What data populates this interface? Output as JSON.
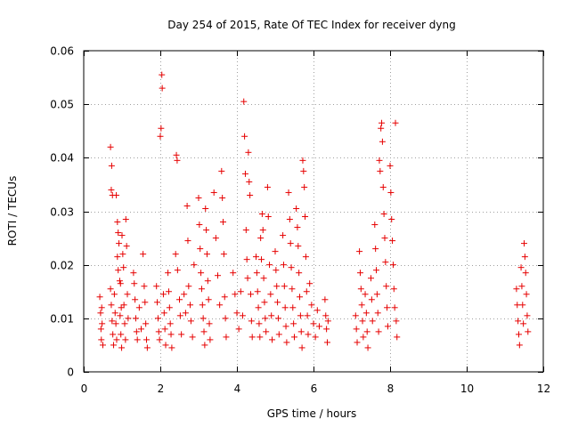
{
  "chart_data": {
    "type": "scatter",
    "title": "Day 254 of 2015, Rate Of TEC Index for receiver dyng",
    "xlabel": "GPS time / hours",
    "ylabel": "ROTI / TECUs",
    "xlim": [
      0,
      12
    ],
    "ylim": [
      0,
      0.06
    ],
    "x_ticks": [
      0,
      2,
      4,
      6,
      8,
      10,
      12
    ],
    "y_ticks": [
      0,
      0.01,
      0.02,
      0.03,
      0.04,
      0.05,
      0.06
    ],
    "x_tick_labels": [
      "0",
      "2",
      "4",
      "6",
      "8",
      "10",
      "12"
    ],
    "y_tick_labels": [
      "0",
      "0.01",
      "0.02",
      "0.03",
      "0.04",
      "0.05",
      "0.06"
    ],
    "grid": true,
    "marker": "+",
    "marker_color": "#e60000",
    "series": [
      {
        "name": "ROTI",
        "points": [
          [
            0.42,
            0.014
          ],
          [
            0.44,
            0.011
          ],
          [
            0.45,
            0.008
          ],
          [
            0.46,
            0.006
          ],
          [
            0.47,
            0.012
          ],
          [
            0.48,
            0.009
          ],
          [
            0.5,
            0.005
          ],
          [
            0.7,
            0.042
          ],
          [
            0.73,
            0.0385
          ],
          [
            0.72,
            0.034
          ],
          [
            0.75,
            0.033
          ],
          [
            0.7,
            0.0155
          ],
          [
            0.72,
            0.0125
          ],
          [
            0.74,
            0.0095
          ],
          [
            0.76,
            0.007
          ],
          [
            0.78,
            0.005
          ],
          [
            0.8,
            0.0145
          ],
          [
            0.82,
            0.011
          ],
          [
            0.84,
            0.009
          ],
          [
            0.86,
            0.006
          ],
          [
            0.85,
            0.033
          ],
          [
            0.88,
            0.028
          ],
          [
            0.9,
            0.026
          ],
          [
            0.92,
            0.024
          ],
          [
            0.88,
            0.0215
          ],
          [
            0.9,
            0.019
          ],
          [
            0.94,
            0.017
          ],
          [
            0.96,
            0.0165
          ],
          [
            0.98,
            0.012
          ],
          [
            0.95,
            0.0105
          ],
          [
            0.97,
            0.007
          ],
          [
            0.99,
            0.0045
          ],
          [
            1.0,
            0.0255
          ],
          [
            1.02,
            0.022
          ],
          [
            1.04,
            0.0195
          ],
          [
            1.05,
            0.0125
          ],
          [
            1.07,
            0.009
          ],
          [
            1.09,
            0.006
          ],
          [
            1.1,
            0.0285
          ],
          [
            1.12,
            0.0235
          ],
          [
            1.14,
            0.0145
          ],
          [
            1.16,
            0.01
          ],
          [
            1.3,
            0.0185
          ],
          [
            1.32,
            0.0165
          ],
          [
            1.34,
            0.0135
          ],
          [
            1.36,
            0.01
          ],
          [
            1.38,
            0.0075
          ],
          [
            1.4,
            0.006
          ],
          [
            1.45,
            0.012
          ],
          [
            1.5,
            0.008
          ],
          [
            1.55,
            0.022
          ],
          [
            1.58,
            0.016
          ],
          [
            1.6,
            0.013
          ],
          [
            1.62,
            0.009
          ],
          [
            1.64,
            0.006
          ],
          [
            1.66,
            0.0045
          ],
          [
            1.9,
            0.016
          ],
          [
            1.92,
            0.013
          ],
          [
            1.94,
            0.01
          ],
          [
            1.96,
            0.0075
          ],
          [
            1.98,
            0.006
          ],
          [
            2.0,
            0.044
          ],
          [
            2.02,
            0.0455
          ],
          [
            2.04,
            0.0555
          ],
          [
            2.05,
            0.053
          ],
          [
            2.08,
            0.0145
          ],
          [
            2.1,
            0.011
          ],
          [
            2.12,
            0.008
          ],
          [
            2.14,
            0.005
          ],
          [
            2.2,
            0.0185
          ],
          [
            2.22,
            0.015
          ],
          [
            2.24,
            0.012
          ],
          [
            2.26,
            0.009
          ],
          [
            2.28,
            0.007
          ],
          [
            2.3,
            0.0045
          ],
          [
            2.42,
            0.0405
          ],
          [
            2.44,
            0.0395
          ],
          [
            2.4,
            0.022
          ],
          [
            2.45,
            0.019
          ],
          [
            2.5,
            0.0135
          ],
          [
            2.52,
            0.0105
          ],
          [
            2.55,
            0.007
          ],
          [
            2.62,
            0.0145
          ],
          [
            2.66,
            0.011
          ],
          [
            2.7,
            0.031
          ],
          [
            2.72,
            0.0245
          ],
          [
            2.74,
            0.016
          ],
          [
            2.78,
            0.0125
          ],
          [
            2.8,
            0.0095
          ],
          [
            2.84,
            0.0065
          ],
          [
            2.88,
            0.02
          ],
          [
            3.0,
            0.0325
          ],
          [
            3.02,
            0.0275
          ],
          [
            3.04,
            0.023
          ],
          [
            3.06,
            0.0185
          ],
          [
            3.08,
            0.0155
          ],
          [
            3.1,
            0.0125
          ],
          [
            3.12,
            0.01
          ],
          [
            3.14,
            0.0075
          ],
          [
            3.16,
            0.005
          ],
          [
            3.18,
            0.0305
          ],
          [
            3.2,
            0.0265
          ],
          [
            3.22,
            0.022
          ],
          [
            3.24,
            0.017
          ],
          [
            3.26,
            0.0135
          ],
          [
            3.28,
            0.009
          ],
          [
            3.3,
            0.006
          ],
          [
            3.4,
            0.0335
          ],
          [
            3.45,
            0.025
          ],
          [
            3.5,
            0.018
          ],
          [
            3.55,
            0.0125
          ],
          [
            3.6,
            0.0375
          ],
          [
            3.62,
            0.0325
          ],
          [
            3.64,
            0.028
          ],
          [
            3.66,
            0.022
          ],
          [
            3.68,
            0.014
          ],
          [
            3.7,
            0.01
          ],
          [
            3.72,
            0.0065
          ],
          [
            3.9,
            0.0185
          ],
          [
            3.95,
            0.0145
          ],
          [
            4.0,
            0.011
          ],
          [
            4.05,
            0.008
          ],
          [
            4.1,
            0.015
          ],
          [
            4.15,
            0.0105
          ],
          [
            4.18,
            0.0505
          ],
          [
            4.2,
            0.044
          ],
          [
            4.22,
            0.037
          ],
          [
            4.24,
            0.0265
          ],
          [
            4.26,
            0.021
          ],
          [
            4.28,
            0.0175
          ],
          [
            4.3,
            0.041
          ],
          [
            4.32,
            0.0355
          ],
          [
            4.34,
            0.033
          ],
          [
            4.36,
            0.0145
          ],
          [
            4.38,
            0.0095
          ],
          [
            4.4,
            0.0065
          ],
          [
            4.5,
            0.0215
          ],
          [
            4.52,
            0.0185
          ],
          [
            4.54,
            0.015
          ],
          [
            4.56,
            0.012
          ],
          [
            4.58,
            0.009
          ],
          [
            4.6,
            0.0065
          ],
          [
            4.62,
            0.025
          ],
          [
            4.64,
            0.021
          ],
          [
            4.66,
            0.0295
          ],
          [
            4.68,
            0.0265
          ],
          [
            4.7,
            0.0175
          ],
          [
            4.72,
            0.013
          ],
          [
            4.74,
            0.01
          ],
          [
            4.76,
            0.0075
          ],
          [
            4.8,
            0.0345
          ],
          [
            4.82,
            0.029
          ],
          [
            4.85,
            0.02
          ],
          [
            4.88,
            0.0145
          ],
          [
            4.9,
            0.0105
          ],
          [
            4.92,
            0.006
          ],
          [
            5.0,
            0.0225
          ],
          [
            5.02,
            0.019
          ],
          [
            5.04,
            0.016
          ],
          [
            5.06,
            0.013
          ],
          [
            5.08,
            0.01
          ],
          [
            5.1,
            0.007
          ],
          [
            5.2,
            0.0255
          ],
          [
            5.22,
            0.02
          ],
          [
            5.24,
            0.016
          ],
          [
            5.26,
            0.012
          ],
          [
            5.28,
            0.0085
          ],
          [
            5.3,
            0.0055
          ],
          [
            5.35,
            0.0335
          ],
          [
            5.38,
            0.0285
          ],
          [
            5.4,
            0.024
          ],
          [
            5.42,
            0.0195
          ],
          [
            5.44,
            0.0155
          ],
          [
            5.46,
            0.012
          ],
          [
            5.48,
            0.009
          ],
          [
            5.5,
            0.0065
          ],
          [
            5.55,
            0.0305
          ],
          [
            5.58,
            0.027
          ],
          [
            5.6,
            0.0235
          ],
          [
            5.62,
            0.0185
          ],
          [
            5.64,
            0.014
          ],
          [
            5.66,
            0.0105
          ],
          [
            5.68,
            0.0075
          ],
          [
            5.7,
            0.0045
          ],
          [
            5.72,
            0.0395
          ],
          [
            5.74,
            0.0375
          ],
          [
            5.76,
            0.0345
          ],
          [
            5.78,
            0.029
          ],
          [
            5.8,
            0.0215
          ],
          [
            5.82,
            0.015
          ],
          [
            5.84,
            0.0105
          ],
          [
            5.86,
            0.007
          ],
          [
            5.9,
            0.0165
          ],
          [
            5.95,
            0.0125
          ],
          [
            6.0,
            0.009
          ],
          [
            6.05,
            0.0065
          ],
          [
            6.1,
            0.0115
          ],
          [
            6.15,
            0.0085
          ],
          [
            6.3,
            0.0135
          ],
          [
            6.32,
            0.0105
          ],
          [
            6.34,
            0.008
          ],
          [
            6.36,
            0.0055
          ],
          [
            6.38,
            0.0095
          ],
          [
            7.1,
            0.0105
          ],
          [
            7.12,
            0.008
          ],
          [
            7.14,
            0.0055
          ],
          [
            7.2,
            0.0225
          ],
          [
            7.22,
            0.0185
          ],
          [
            7.24,
            0.0155
          ],
          [
            7.26,
            0.0125
          ],
          [
            7.28,
            0.0095
          ],
          [
            7.3,
            0.0065
          ],
          [
            7.35,
            0.0145
          ],
          [
            7.38,
            0.011
          ],
          [
            7.4,
            0.0075
          ],
          [
            7.42,
            0.0045
          ],
          [
            7.5,
            0.0175
          ],
          [
            7.52,
            0.0135
          ],
          [
            7.54,
            0.0095
          ],
          [
            7.6,
            0.0275
          ],
          [
            7.62,
            0.023
          ],
          [
            7.64,
            0.019
          ],
          [
            7.66,
            0.0145
          ],
          [
            7.68,
            0.011
          ],
          [
            7.7,
            0.0075
          ],
          [
            7.72,
            0.0395
          ],
          [
            7.74,
            0.0375
          ],
          [
            7.76,
            0.0455
          ],
          [
            7.78,
            0.0465
          ],
          [
            7.8,
            0.043
          ],
          [
            7.82,
            0.0345
          ],
          [
            7.84,
            0.0295
          ],
          [
            7.86,
            0.025
          ],
          [
            7.88,
            0.0205
          ],
          [
            7.9,
            0.016
          ],
          [
            7.92,
            0.012
          ],
          [
            7.94,
            0.0085
          ],
          [
            8.0,
            0.0385
          ],
          [
            8.02,
            0.0335
          ],
          [
            8.04,
            0.0285
          ],
          [
            8.06,
            0.0245
          ],
          [
            8.08,
            0.02
          ],
          [
            8.1,
            0.0155
          ],
          [
            8.12,
            0.012
          ],
          [
            8.14,
            0.0465
          ],
          [
            8.16,
            0.0095
          ],
          [
            8.18,
            0.0065
          ],
          [
            11.3,
            0.0155
          ],
          [
            11.32,
            0.0125
          ],
          [
            11.34,
            0.0095
          ],
          [
            11.36,
            0.007
          ],
          [
            11.38,
            0.005
          ],
          [
            11.42,
            0.0195
          ],
          [
            11.44,
            0.016
          ],
          [
            11.46,
            0.0125
          ],
          [
            11.48,
            0.009
          ],
          [
            11.5,
            0.024
          ],
          [
            11.52,
            0.0215
          ],
          [
            11.54,
            0.0185
          ],
          [
            11.56,
            0.0145
          ],
          [
            11.58,
            0.0105
          ],
          [
            11.6,
            0.0075
          ]
        ]
      }
    ]
  }
}
